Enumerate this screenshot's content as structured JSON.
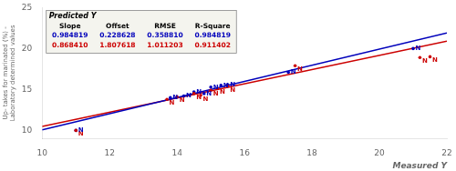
{
  "chart_data": {
    "type": "scatter",
    "xlabel": "Measured Y",
    "ylabel": "Up- takes for marinated (%) -\nLaboratory determined values",
    "xlim": [
      10,
      22
    ],
    "ylim": [
      9,
      25
    ],
    "xticks": [
      10,
      12,
      14,
      16,
      18,
      20,
      22
    ],
    "yticks": [
      10,
      15,
      20,
      25
    ],
    "grid": false,
    "series": [
      {
        "type": "scatter",
        "color": "#CC0000",
        "marker": "N",
        "x": [
          11.0,
          13.7,
          14.0,
          14.5,
          14.7,
          15.0,
          15.2,
          15.5,
          17.5,
          21.2,
          21.5
        ],
        "values": [
          10.0,
          13.8,
          14.1,
          14.5,
          14.3,
          14.9,
          15.1,
          15.4,
          17.9,
          18.9,
          19.0
        ]
      },
      {
        "type": "scatter",
        "color": "#0000BB",
        "marker": "N",
        "x": [
          11.0,
          13.8,
          14.2,
          14.5,
          14.8,
          15.0,
          15.3,
          15.5,
          17.3,
          21.0
        ],
        "values": [
          10.0,
          14.0,
          14.2,
          14.7,
          14.5,
          15.3,
          15.5,
          15.6,
          17.1,
          20.0
        ]
      },
      {
        "type": "line",
        "color": "#0000BB",
        "x": [
          10,
          22
        ],
        "values": [
          10.076818,
          21.894646
        ]
      },
      {
        "type": "line",
        "color": "#CC0000",
        "x": [
          10,
          22
        ],
        "values": [
          10.491718,
          20.912638
        ]
      }
    ],
    "annotations": {
      "title": "Predicted Y",
      "header": [
        "Slope",
        "Offset",
        "RMSE",
        "R-Square"
      ],
      "rows": [
        {
          "color": "#0000BB",
          "values": [
            "0.984819",
            "0.228628",
            "0.358810",
            "0.984819"
          ]
        },
        {
          "color": "#CC0000",
          "values": [
            "0.868410",
            "1.807618",
            "1.011203",
            "0.911402"
          ]
        }
      ]
    }
  }
}
